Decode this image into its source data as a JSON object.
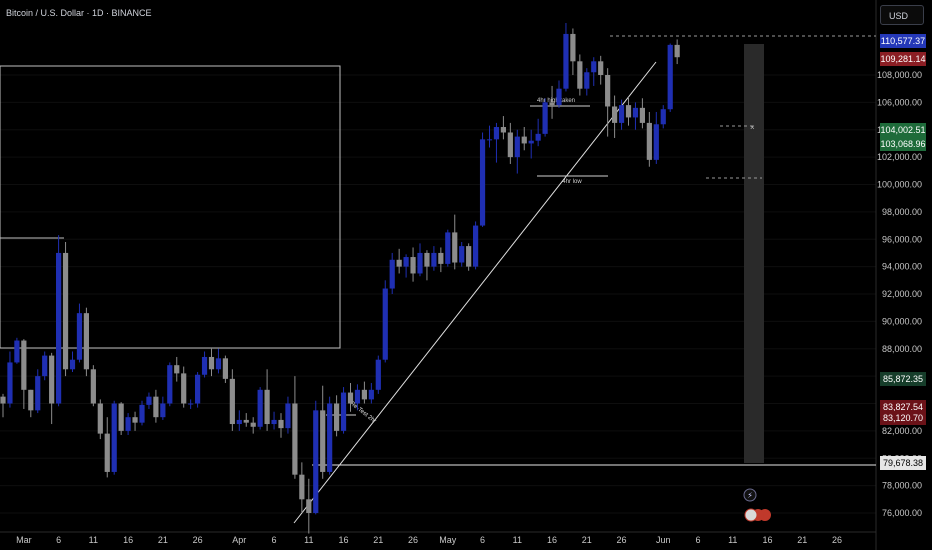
{
  "header": {
    "title": "Bitcoin / U.S. Dollar · 1D · BINANCE",
    "currency": "USD"
  },
  "colors": {
    "up": "#1f2fb3",
    "down": "#8c8c8c",
    "background": "#000000",
    "axis_text": "#c8c8c8",
    "line": "#d8d8d8"
  },
  "chart_data": {
    "type": "candlestick",
    "symbol": "Bitcoin / U.S. Dollar",
    "timeframe": "1D",
    "exchange": "BINANCE",
    "ylim": [
      74500,
      113500
    ],
    "y_ticks": [
      76000,
      78000,
      80000,
      82000,
      84000,
      86000,
      88000,
      90000,
      92000,
      94000,
      96000,
      98000,
      100000,
      102000,
      104000,
      106000,
      108000
    ],
    "x_tick_labels": [
      {
        "label": "Mar",
        "index": 3
      },
      {
        "label": "6",
        "index": 8
      },
      {
        "label": "11",
        "index": 13
      },
      {
        "label": "16",
        "index": 18
      },
      {
        "label": "21",
        "index": 23
      },
      {
        "label": "26",
        "index": 28
      },
      {
        "label": "Apr",
        "index": 34
      },
      {
        "label": "6",
        "index": 39
      },
      {
        "label": "11",
        "index": 44
      },
      {
        "label": "16",
        "index": 49
      },
      {
        "label": "21",
        "index": 54
      },
      {
        "label": "26",
        "index": 59
      },
      {
        "label": "May",
        "index": 64
      },
      {
        "label": "6",
        "index": 69
      },
      {
        "label": "11",
        "index": 74
      },
      {
        "label": "16",
        "index": 79
      },
      {
        "label": "21",
        "index": 84
      },
      {
        "label": "26",
        "index": 89
      },
      {
        "label": "Jun",
        "index": 95
      },
      {
        "label": "6",
        "index": 100
      },
      {
        "label": "11",
        "index": 105
      },
      {
        "label": "16",
        "index": 110
      },
      {
        "label": "21",
        "index": 115
      },
      {
        "label": "26",
        "index": 120
      }
    ],
    "candles": [
      [
        84500,
        84700,
        83000,
        84000
      ],
      [
        84000,
        87800,
        83700,
        87000
      ],
      [
        87000,
        88800,
        86900,
        88600
      ],
      [
        88600,
        88700,
        83600,
        85000
      ],
      [
        85000,
        85000,
        83000,
        83500
      ],
      [
        83500,
        86500,
        83300,
        86000
      ],
      [
        86000,
        87800,
        85700,
        87500
      ],
      [
        87500,
        87700,
        82500,
        84000
      ],
      [
        84000,
        96300,
        83800,
        95000
      ],
      [
        95000,
        95800,
        86000,
        86500
      ],
      [
        86500,
        87800,
        86300,
        87200
      ],
      [
        87200,
        91300,
        87000,
        90600
      ],
      [
        90600,
        91000,
        86000,
        86500
      ],
      [
        86500,
        86800,
        83800,
        84000
      ],
      [
        84000,
        84300,
        81400,
        81800
      ],
      [
        81800,
        83000,
        78600,
        79000
      ],
      [
        79000,
        84200,
        78800,
        84000
      ],
      [
        84000,
        84100,
        81700,
        82000
      ],
      [
        82000,
        83300,
        81700,
        83000
      ],
      [
        83000,
        83400,
        82000,
        82600
      ],
      [
        82600,
        84200,
        82400,
        83900
      ],
      [
        83900,
        84800,
        83600,
        84500
      ],
      [
        84500,
        85000,
        82600,
        83000
      ],
      [
        83000,
        84500,
        82800,
        84000
      ],
      [
        84000,
        87000,
        83800,
        86800
      ],
      [
        86800,
        87400,
        85600,
        86200
      ],
      [
        86200,
        86700,
        83700,
        84000
      ],
      [
        84000,
        84300,
        83600,
        84000
      ],
      [
        84000,
        86300,
        83700,
        86100
      ],
      [
        86100,
        87800,
        85900,
        87400
      ],
      [
        87400,
        88000,
        86000,
        86500
      ],
      [
        86500,
        88000,
        86200,
        87300
      ],
      [
        87300,
        87500,
        85500,
        85800
      ],
      [
        85800,
        86500,
        82000,
        82500
      ],
      [
        82500,
        83500,
        82000,
        82800
      ],
      [
        82800,
        83300,
        82300,
        82600
      ],
      [
        82600,
        83000,
        81800,
        82300
      ],
      [
        82300,
        85200,
        82100,
        85000
      ],
      [
        85000,
        86500,
        82000,
        82500
      ],
      [
        82500,
        83400,
        82100,
        82800
      ],
      [
        82800,
        83300,
        81500,
        82200
      ],
      [
        82200,
        84500,
        81800,
        84000
      ],
      [
        84000,
        86000,
        78500,
        78800
      ],
      [
        78800,
        79700,
        76000,
        77000
      ],
      [
        77000,
        78500,
        74500,
        76000
      ],
      [
        76000,
        84200,
        75900,
        83500
      ],
      [
        83500,
        85300,
        78500,
        79000
      ],
      [
        79000,
        84500,
        78800,
        84000
      ],
      [
        84000,
        84600,
        81600,
        82000
      ],
      [
        82000,
        85200,
        81800,
        84800
      ],
      [
        84800,
        85500,
        83400,
        84000
      ],
      [
        84000,
        85400,
        83500,
        85000
      ],
      [
        85000,
        85600,
        84000,
        84300
      ],
      [
        84300,
        85500,
        84000,
        85000
      ],
      [
        85000,
        87500,
        84700,
        87200
      ],
      [
        87200,
        93000,
        87000,
        92400
      ],
      [
        92400,
        95000,
        92000,
        94500
      ],
      [
        94500,
        95300,
        93500,
        94000
      ],
      [
        94000,
        94900,
        93200,
        94700
      ],
      [
        94700,
        95400,
        92900,
        93500
      ],
      [
        93500,
        95700,
        93300,
        95000
      ],
      [
        95000,
        95200,
        93000,
        94000
      ],
      [
        94000,
        95500,
        93700,
        95000
      ],
      [
        95000,
        95400,
        93600,
        94200
      ],
      [
        94200,
        96700,
        94000,
        96500
      ],
      [
        96500,
        97800,
        93800,
        94300
      ],
      [
        94300,
        95800,
        94000,
        95500
      ],
      [
        95500,
        95700,
        93700,
        94000
      ],
      [
        94000,
        97300,
        93800,
        97000
      ],
      [
        97000,
        103800,
        96900,
        103300
      ],
      [
        103300,
        104300,
        102700,
        103300
      ],
      [
        103300,
        104500,
        101600,
        104200
      ],
      [
        104200,
        105000,
        103300,
        103800
      ],
      [
        103800,
        104500,
        101500,
        102000
      ],
      [
        102000,
        104000,
        100800,
        103500
      ],
      [
        103500,
        104200,
        102500,
        103000
      ],
      [
        103000,
        104000,
        101900,
        103200
      ],
      [
        103200,
        104800,
        102800,
        103700
      ],
      [
        103700,
        106300,
        103500,
        106000
      ],
      [
        106000,
        107200,
        104800,
        105800
      ],
      [
        105800,
        107600,
        105600,
        107000
      ],
      [
        107000,
        111800,
        106800,
        111000
      ],
      [
        111000,
        111400,
        108000,
        109000
      ],
      [
        109000,
        109500,
        106500,
        107000
      ],
      [
        107000,
        108500,
        106500,
        108200
      ],
      [
        108200,
        109300,
        107200,
        109000
      ],
      [
        109000,
        109400,
        107300,
        108000
      ],
      [
        108000,
        108500,
        103500,
        105700
      ],
      [
        105700,
        106500,
        103400,
        104500
      ],
      [
        104500,
        106200,
        104000,
        105800
      ],
      [
        105800,
        106400,
        104300,
        104900
      ],
      [
        104900,
        106000,
        104000,
        105600
      ],
      [
        105600,
        106300,
        104100,
        104500
      ],
      [
        104500,
        105300,
        101300,
        101800
      ],
      [
        101800,
        105300,
        101500,
        104400
      ],
      [
        104400,
        105800,
        104100,
        105500
      ],
      [
        105500,
        110300,
        105300,
        110200
      ],
      [
        110200,
        110600,
        108800,
        109300
      ]
    ],
    "current_price": 110577.37,
    "price_labels": [
      110577.37,
      109281.14,
      108000.0,
      104002.51,
      103068.96,
      85872.35,
      83827.54,
      83120.7,
      80000.0,
      79678.38
    ],
    "annotations": [
      "4hr high taken",
      "4hr low",
      "Re-Test 2hr"
    ]
  }
}
